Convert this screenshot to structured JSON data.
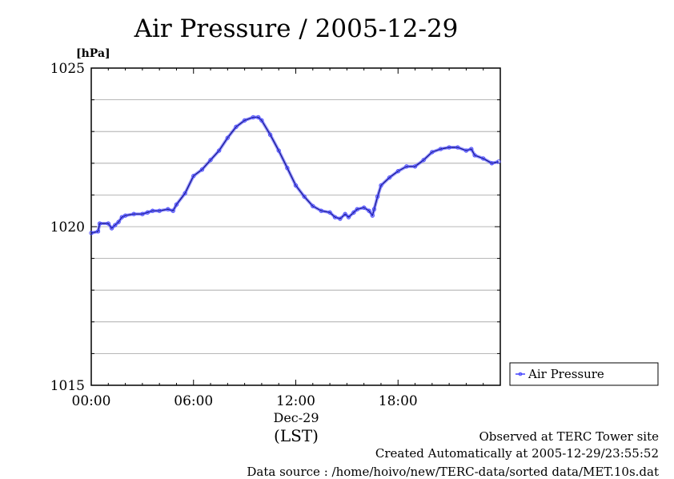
{
  "chart_data": {
    "type": "line",
    "title": "Air Pressure / 2005-12-29",
    "ylabel": "[hPa]",
    "xlabel": "(LST)",
    "date_label": "Dec-29",
    "ylim": [
      1015,
      1025
    ],
    "xlim": [
      0,
      24
    ],
    "y_ticks": [
      1015,
      1020,
      1025
    ],
    "y_tick_labels": [
      "1015",
      "1020",
      "1025"
    ],
    "y_grid_step": 1,
    "x_ticks": [
      0,
      6,
      12,
      18
    ],
    "x_tick_labels": [
      "00:00",
      "06:00",
      "12:00",
      "18:00"
    ],
    "grid": true,
    "legend_position": "right",
    "series": [
      {
        "name": "Air Pressure",
        "color": "#4444ff",
        "x": [
          0.0,
          0.4,
          0.5,
          1.0,
          1.2,
          1.4,
          1.6,
          1.8,
          2.0,
          2.5,
          3.0,
          3.3,
          3.6,
          4.0,
          4.5,
          4.8,
          5.0,
          5.5,
          6.0,
          6.5,
          7.0,
          7.5,
          8.0,
          8.5,
          9.0,
          9.5,
          9.8,
          10.0,
          10.5,
          11.0,
          11.5,
          12.0,
          12.5,
          13.0,
          13.5,
          14.0,
          14.3,
          14.6,
          14.9,
          15.1,
          15.4,
          15.6,
          16.0,
          16.3,
          16.5,
          16.6,
          16.8,
          17.0,
          17.5,
          18.0,
          18.5,
          19.0,
          19.5,
          20.0,
          20.5,
          21.0,
          21.5,
          22.0,
          22.3,
          22.5,
          23.0,
          23.5,
          23.9
        ],
        "y": [
          1019.8,
          1019.85,
          1020.1,
          1020.1,
          1019.95,
          1020.05,
          1020.15,
          1020.3,
          1020.35,
          1020.4,
          1020.4,
          1020.45,
          1020.5,
          1020.5,
          1020.55,
          1020.5,
          1020.7,
          1021.05,
          1021.6,
          1021.8,
          1022.1,
          1022.4,
          1022.8,
          1023.15,
          1023.35,
          1023.45,
          1023.45,
          1023.35,
          1022.9,
          1022.4,
          1021.85,
          1021.3,
          1020.95,
          1020.65,
          1020.5,
          1020.45,
          1020.3,
          1020.25,
          1020.4,
          1020.3,
          1020.45,
          1020.55,
          1020.6,
          1020.5,
          1020.35,
          1020.55,
          1020.95,
          1021.3,
          1021.55,
          1021.75,
          1021.9,
          1021.9,
          1022.1,
          1022.35,
          1022.45,
          1022.5,
          1022.5,
          1022.4,
          1022.45,
          1022.25,
          1022.15,
          1022.0,
          1022.05
        ]
      }
    ]
  },
  "footer": {
    "line1": "Observed at TERC Tower site",
    "line2": "Created Automatically at 2005-12-29/23:55:52",
    "line3": "Data source : /home/hoivo/new/TERC-data/sorted  data/MET.10s.dat"
  }
}
